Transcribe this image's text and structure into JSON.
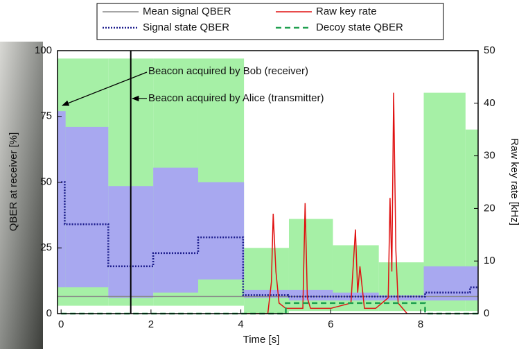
{
  "chart_data": {
    "type": "line",
    "xlabel": "Time [s]",
    "ylabel": "QBER at receiver [%]",
    "y2label": "Raw key rate [kHz]",
    "xlim": [
      -0.08,
      9.28
    ],
    "xticks": [
      0,
      2,
      4,
      6,
      8
    ],
    "ylim": [
      0,
      100
    ],
    "yticks": [
      0,
      25,
      50,
      75,
      100
    ],
    "y2lim": [
      0,
      50
    ],
    "y2ticks": [
      0,
      10,
      20,
      30,
      40,
      50
    ],
    "bands": [
      {
        "color": "#a6f0a6",
        "edges": [
          -0.08,
          1.05,
          2.05,
          3.05,
          4.07,
          5.07,
          6.05,
          7.07,
          8.07,
          9.0,
          9.28
        ],
        "lower": [
          3,
          3,
          3,
          3,
          0,
          1,
          1,
          1,
          1,
          1
        ],
        "upper": [
          97,
          97,
          97,
          97,
          25,
          36,
          26,
          19.5,
          84,
          70
        ]
      },
      {
        "color": "#a8a8f0",
        "edges": [
          -0.08,
          0.1,
          1.05,
          2.05,
          3.05,
          4.07,
          5.07,
          6.05,
          7.07,
          8.07,
          9.28
        ],
        "lower": [
          10,
          10,
          6,
          8,
          13,
          6,
          5,
          5,
          5,
          5
        ],
        "upper": [
          77,
          71,
          48.5,
          55.5,
          50,
          9,
          9,
          8,
          7,
          18
        ]
      }
    ],
    "series": [
      {
        "name": "Mean signal QBER",
        "color": "#888888",
        "dash": "solid",
        "x": [
          -0.08,
          9.28
        ],
        "values": [
          6.5,
          6.5
        ]
      },
      {
        "name": "Signal state QBER",
        "color": "#1c1c8c",
        "dash": "dotted",
        "step": true,
        "x": [
          0,
          0.08,
          1.05,
          2.05,
          3.05,
          4.05,
          5.05,
          8.1,
          9.1,
          9.28
        ],
        "values": [
          50,
          34,
          18,
          23,
          29,
          7,
          6.5,
          8,
          10,
          10
        ]
      },
      {
        "name": "Raw key rate",
        "color": "#e01010",
        "dash": "solid",
        "axis": "y2",
        "x": [
          4.1,
          4.6,
          4.68,
          4.72,
          4.78,
          4.85,
          5.0,
          5.38,
          5.43,
          5.48,
          5.55,
          6.0,
          6.45,
          6.55,
          6.6,
          6.65,
          6.75,
          7.0,
          7.28,
          7.32,
          7.36,
          7.4,
          7.45,
          7.5,
          7.7
        ],
        "values": [
          0,
          0,
          6,
          19,
          8,
          2,
          1,
          1,
          21,
          3,
          1,
          1,
          2,
          16,
          4,
          9,
          1,
          1,
          3,
          22,
          8,
          42,
          12,
          2,
          0
        ]
      },
      {
        "name": "Decoy state QBER",
        "color": "#20a050",
        "dash": "dashed",
        "step": true,
        "x": [
          0,
          5.0,
          8.1,
          9.28
        ],
        "values": [
          0,
          4,
          0,
          0
        ]
      }
    ],
    "vline_x": 1.55,
    "annotations": [
      "Beacon acquired by Bob (receiver)",
      "Beacon acquired by Alice (transmitter)"
    ]
  }
}
